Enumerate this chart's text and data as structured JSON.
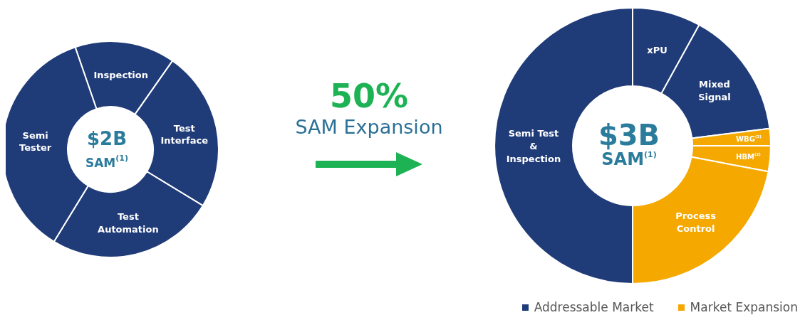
{
  "chart_data": [
    {
      "type": "donut",
      "categories": [
        "Inspection",
        "Test Interface",
        "Test Automation",
        "Semi Tester"
      ],
      "values": [
        15,
        24,
        25,
        36
      ],
      "colors": [
        "#1f3b78",
        "#1f3b78",
        "#1f3b78",
        "#1f3b78"
      ],
      "annotations": [
        "$2B",
        "SAM$^{(1)}$"
      ]
    },
    {
      "type": "other",
      "annotations": [
        "50%",
        "SAM Expansion"
      ]
    },
    {
      "type": "donut",
      "categories": [
        "xPU",
        "Mixed Signal",
        "WBG$^{(2)}$",
        "HBM$^{(2)}$",
        "Process Control",
        "Semi Test & Inspection"
      ],
      "values": [
        8,
        15,
        2,
        3,
        22,
        50
      ],
      "colors": [
        "#1f3b78",
        "#1f3b78",
        "#f5a800",
        "#f5a800",
        "#f5a800",
        "#1f3b78"
      ],
      "annotations": [
        "$3B",
        "SAM$^{(1)}$",
        "Addressable Market",
        "Market Expansion"
      ]
    }
  ]
}
